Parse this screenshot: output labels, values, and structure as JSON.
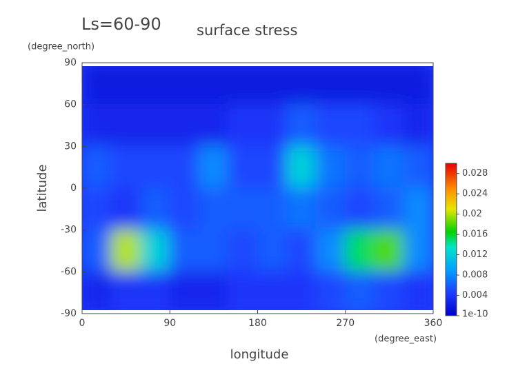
{
  "chart_data": {
    "type": "contour",
    "title": "Ls=60-90",
    "subtitle": "surface stress",
    "xlabel": "longitude",
    "ylabel": "latitude",
    "xunit": "(degree_east)",
    "yunit": "(degree_north)",
    "x": [
      15,
      45,
      75,
      105,
      135,
      165,
      195,
      225,
      255,
      285,
      315,
      345
    ],
    "y": [
      75,
      45,
      15,
      -15,
      -45,
      -75
    ],
    "z": [
      [
        0.002,
        0.002,
        0.002,
        0.002,
        0.002,
        0.002,
        0.002,
        0.002,
        0.002,
        0.002,
        0.002,
        0.002
      ],
      [
        0.003,
        0.003,
        0.003,
        0.003,
        0.003,
        0.004,
        0.004,
        0.006,
        0.005,
        0.005,
        0.004,
        0.003
      ],
      [
        0.006,
        0.005,
        0.005,
        0.005,
        0.008,
        0.005,
        0.005,
        0.012,
        0.007,
        0.006,
        0.007,
        0.006
      ],
      [
        0.005,
        0.004,
        0.006,
        0.005,
        0.006,
        0.006,
        0.006,
        0.007,
        0.006,
        0.005,
        0.006,
        0.008
      ],
      [
        0.006,
        0.02,
        0.012,
        0.006,
        0.006,
        0.005,
        0.006,
        0.005,
        0.008,
        0.015,
        0.018,
        0.008
      ],
      [
        0.003,
        0.004,
        0.004,
        0.003,
        0.003,
        0.004,
        0.004,
        0.004,
        0.005,
        0.006,
        0.005,
        0.004
      ]
    ],
    "xlim": [
      0,
      360
    ],
    "xticks": [
      0,
      90,
      180,
      270,
      360
    ],
    "ylim": [
      -90,
      90
    ],
    "yticks": [
      -90,
      -60,
      -30,
      0,
      30,
      60,
      90
    ],
    "colorbar": {
      "lim": [
        0,
        0.03
      ],
      "ticks": [
        1e-10,
        0.004,
        0.008,
        0.012,
        0.016,
        0.02,
        0.024,
        0.028
      ]
    }
  }
}
